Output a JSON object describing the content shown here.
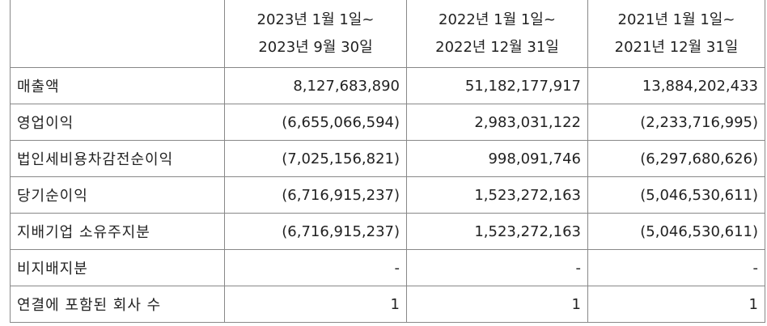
{
  "table": {
    "columns": [
      {
        "line1": "2023년 1월 1일~",
        "line2": "2023년 9월 30일"
      },
      {
        "line1": "2022년 1월 1일~",
        "line2": "2022년 12월 31일"
      },
      {
        "line1": "2021년 1월 1일~",
        "line2": "2021년 12월 31일"
      }
    ],
    "rows": [
      {
        "label": "매출액",
        "values": [
          "8,127,683,890",
          "51,182,177,917",
          "13,884,202,433"
        ]
      },
      {
        "label": "영업이익",
        "values": [
          "(6,655,066,594)",
          "2,983,031,122",
          "(2,233,716,995)"
        ]
      },
      {
        "label": "법인세비용차감전순이익",
        "values": [
          "(7,025,156,821)",
          "998,091,746",
          "(6,297,680,626)"
        ]
      },
      {
        "label": "당기순이익",
        "values": [
          "(6,716,915,237)",
          "1,523,272,163",
          "(5,046,530,611)"
        ]
      },
      {
        "label": "지배기업 소유주지분",
        "values": [
          "(6,716,915,237)",
          "1,523,272,163",
          "(5,046,530,611)"
        ]
      },
      {
        "label": "비지배지분",
        "values": [
          "-",
          "-",
          "-"
        ]
      },
      {
        "label": "연결에 포함된 회사 수",
        "values": [
          "1",
          "1",
          "1"
        ]
      }
    ]
  }
}
